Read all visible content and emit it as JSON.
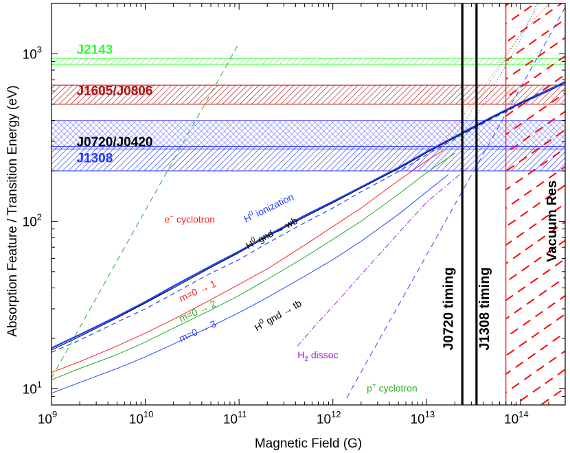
{
  "chart_data": {
    "type": "line",
    "xscale": "log",
    "yscale": "log",
    "xlim": [
      1000000000.0,
      300000000000000.0
    ],
    "ylim": [
      8,
      2000
    ],
    "xlabel": "Magnetic Field (G)",
    "ylabel": "Absorption Feature / Transition Energy (eV)",
    "x_ticks": [
      {
        "value": 1000000000.0,
        "base": "10",
        "exp": "9"
      },
      {
        "value": 10000000000.0,
        "base": "10",
        "exp": "10"
      },
      {
        "value": 100000000000.0,
        "base": "10",
        "exp": "11"
      },
      {
        "value": 1000000000000.0,
        "base": "10",
        "exp": "12"
      },
      {
        "value": 10000000000000.0,
        "base": "10",
        "exp": "13"
      },
      {
        "value": 100000000000000.0,
        "base": "10",
        "exp": "14"
      }
    ],
    "y_ticks": [
      {
        "value": 10,
        "base": "10",
        "exp": "1"
      },
      {
        "value": 100,
        "base": "10",
        "exp": "2"
      },
      {
        "value": 1000,
        "base": "10",
        "exp": "3"
      }
    ],
    "bands": [
      {
        "name": "J2143",
        "label": "J2143",
        "ymin": 860,
        "ymax": 940,
        "color": "#33ff33",
        "label_x": 1850000000.0,
        "label_y": 1000
      },
      {
        "name": "J1605/J0806",
        "label": "J1605/J0806",
        "ymin": 500,
        "ymax": 650,
        "color": "#b01010",
        "label_x": 1850000000.0,
        "label_y": 566
      },
      {
        "name": "J0720/J0420",
        "label": "J0720/J0420",
        "ymin": 270,
        "ymax": 400,
        "color": "#7777ff",
        "label_x": 1850000000.0,
        "label_y": 281,
        "label_color": "#000000"
      },
      {
        "name": "J1308",
        "label": "J1308",
        "ymin": 200,
        "ymax": 280,
        "color": "#2233ff",
        "label_x": 1850000000.0,
        "label_y": 225
      }
    ],
    "vertical_lines": [
      {
        "name": "J0720 timing",
        "label": "J0720 timing",
        "x": 24000000000000.0,
        "label_x": 19000000000000.0,
        "label_y": 30
      },
      {
        "name": "J1308 timing",
        "label": "J1308 timing",
        "x": 34000000000000.0,
        "label_x": 46000000000000.0,
        "label_y": 30
      }
    ],
    "vacuum_region": {
      "name": "Vacuum Res",
      "label": "Vacuum Res",
      "xmin": 70000000000000.0,
      "xmax": 300000000000000.0,
      "color": "#ff0000",
      "label_x": 240000000000000.0,
      "label_y": 100
    },
    "series": [
      {
        "name": "H0 ionization",
        "label_main": "H",
        "label_sup": "0",
        "label_rest": " ionization",
        "color": "#2244ff",
        "width": 2.5,
        "dash": "",
        "label_x": 118000000000.0,
        "label_y": 98,
        "label_rot": -26,
        "label_color": "#2244ff",
        "x": [
          1000000000.0,
          2000000000.0,
          5000000000.0,
          10000000000.0,
          20000000000.0,
          50000000000.0,
          100000000000.0,
          200000000000.0,
          500000000000.0,
          1000000000000.0,
          2000000000000.0,
          5000000000000.0,
          10000000000000.0,
          20000000000000.0,
          50000000000000.0,
          100000000000000.0,
          200000000000000.0,
          300000000000000.0
        ],
        "y": [
          17.5,
          21,
          27,
          33,
          41,
          54,
          66,
          82,
          108,
          131,
          160,
          209,
          260,
          320,
          420,
          510,
          610,
          680
        ]
      },
      {
        "name": "H0 gnd to wb",
        "label_main": "H",
        "label_sup": "0",
        "label_rest": " gnd → wb",
        "color": "#000000",
        "width": 1,
        "dash": "",
        "label_x": 125000000000.0,
        "label_y": 68,
        "label_rot": -28,
        "label_color": "#000000",
        "x": [
          1000000000.0,
          2000000000.0,
          5000000000.0,
          10000000000.0,
          20000000000.0,
          50000000000.0,
          100000000000.0,
          200000000000.0,
          500000000000.0,
          1000000000000.0,
          2000000000000.0,
          5000000000000.0,
          10000000000000.0,
          20000000000000.0,
          50000000000000.0,
          100000000000000.0,
          200000000000000.0,
          300000000000000.0
        ],
        "y": [
          17,
          20.5,
          26.5,
          32.5,
          40,
          53,
          65,
          81,
          106,
          129,
          158,
          206,
          257,
          316,
          415,
          505,
          600,
          670
        ]
      },
      {
        "name": "blue dashed",
        "color": "#2244ff",
        "width": 1.2,
        "dash": "7,5",
        "x": [
          1000000000.0,
          2000000000.0,
          5000000000.0,
          10000000000.0,
          20000000000.0,
          50000000000.0,
          100000000000.0,
          200000000000.0,
          500000000000.0,
          1000000000000.0,
          2000000000000.0,
          5000000000000.0,
          10000000000000.0,
          20000000000000.0,
          50000000000000.0,
          100000000000000.0,
          200000000000000.0,
          300000000000000.0
        ],
        "y": [
          16.5,
          19.5,
          25,
          30,
          37,
          49,
          59,
          74,
          98,
          120,
          150,
          198,
          250,
          310,
          410,
          500,
          600,
          670
        ]
      },
      {
        "name": "m=0 to 1",
        "label": "m=0 → 1",
        "color": "#ff2020",
        "width": 1,
        "dash": "",
        "label_x": 24000000000.0,
        "label_y": 33,
        "label_rot": -24,
        "label_color": "#ff2020",
        "x": [
          1000000000.0,
          2000000000.0,
          5000000000.0,
          10000000000.0,
          20000000000.0,
          50000000000.0,
          100000000000.0,
          200000000000.0,
          500000000000.0,
          1000000000000.0,
          2000000000000.0,
          5000000000000.0,
          10000000000000.0,
          15000000000000.0
        ],
        "y": [
          12.5,
          14.5,
          18,
          21.5,
          26,
          34,
          42,
          52,
          72,
          93,
          120,
          175,
          230,
          265
        ]
      },
      {
        "name": "m=0 to 2",
        "label": "m=0 → 2",
        "color": "#22aa22",
        "width": 1,
        "dash": "",
        "label_x": 24000000000.0,
        "label_y": 25,
        "label_rot": -24,
        "label_color": "#22aa22",
        "x": [
          1000000000.0,
          2000000000.0,
          5000000000.0,
          10000000000.0,
          20000000000.0,
          50000000000.0,
          100000000000.0,
          200000000000.0,
          500000000000.0,
          1000000000000.0,
          2000000000000.0,
          5000000000000.0,
          10000000000000.0,
          20000000000000.0
        ],
        "y": [
          11.3,
          13.2,
          16,
          19,
          23,
          29.5,
          36,
          45,
          61,
          78,
          100,
          145,
          195,
          255
        ]
      },
      {
        "name": "m=0 to 3",
        "label": "m=0 → 3",
        "color": "#2244ff",
        "width": 1,
        "dash": "",
        "label_x": 24000000000.0,
        "label_y": 19,
        "label_rot": -24,
        "label_color": "#2244ff",
        "x": [
          1000000000.0,
          2000000000.0,
          5000000000.0,
          10000000000.0,
          20000000000.0,
          50000000000.0,
          100000000000.0,
          200000000000.0,
          500000000000.0,
          1000000000000.0,
          2000000000000.0,
          5000000000000.0,
          10000000000000.0,
          17000000000000.0
        ],
        "y": [
          9.4,
          10.9,
          13.2,
          15.5,
          18.5,
          23.5,
          28.5,
          35,
          47,
          59,
          76,
          110,
          150,
          190
        ]
      },
      {
        "name": "H0 gnd to tb",
        "label_main": "H",
        "label_sup": "0",
        "label_rest": " gnd → tb",
        "color": "#000000",
        "width": 0,
        "dash": "",
        "label_x": 155000000000.0,
        "label_y": 22,
        "label_rot": -30,
        "label_color": "#000000",
        "x": [],
        "y": []
      },
      {
        "name": "H2 dissoc",
        "label_main": "H",
        "label_sub": "2",
        "label_rest": " dissoc",
        "color": "#9922dd",
        "width": 1,
        "dash": "8,3,2,3",
        "label_x": 420000000000.0,
        "label_y": 15.2,
        "label_rot": 0,
        "label_color": "#9922dd",
        "x": [
          420000000000.0,
          700000000000.0,
          1000000000000.0,
          2000000000000.0,
          5000000000000.0,
          10000000000000.0,
          20000000000000.0,
          28000000000000.0
        ],
        "y": [
          18,
          25,
          31,
          48,
          85,
          130,
          180,
          210
        ]
      },
      {
        "name": "e- cyclotron",
        "label_main": "e",
        "label_sup": "−",
        "label_rest": " cyclotron",
        "color": "#22aa22",
        "width": 1,
        "dash": "8,6",
        "label_x": 16000000000.0,
        "label_y": 98,
        "label_rot": 0,
        "label_color": "#ff2020",
        "x": [
          1000000000.0,
          100000000000.0
        ],
        "y": [
          11.6,
          1160
        ]
      },
      {
        "name": "p+ cyclotron",
        "label_main": "p",
        "label_sup": "+",
        "label_rest": " cyclotron",
        "color": "#2244ff",
        "width": 1,
        "dash": "8,6",
        "label_x": 2300000000000.0,
        "label_y": 9.6,
        "label_rot": 0,
        "label_color": "#22aa22",
        "x": [
          1400000000000.0,
          20000000000000.0,
          160000000000000.0,
          300000000000000.0
        ],
        "y": [
          8.8,
          126,
          1000,
          1900
        ]
      },
      {
        "name": "dotted a",
        "color": "#ff2020",
        "width": 1,
        "dash": "1,3",
        "x": [
          13000000000000.0,
          100000000000000.0,
          200000000000000.0
        ],
        "y": [
          260,
          1300,
          2000
        ]
      },
      {
        "name": "dotted b",
        "color": "#22aa22",
        "width": 1,
        "dash": "1,3",
        "x": [
          20000000000000.0,
          100000000000000.0,
          160000000000000.0
        ],
        "y": [
          320,
          1300,
          2000
        ]
      },
      {
        "name": "dotted c",
        "color": "#2244ff",
        "width": 1,
        "dash": "1,3",
        "x": [
          26000000000000.0,
          100000000000000.0,
          150000000000000.0
        ],
        "y": [
          330,
          1200,
          2000
        ]
      }
    ]
  }
}
